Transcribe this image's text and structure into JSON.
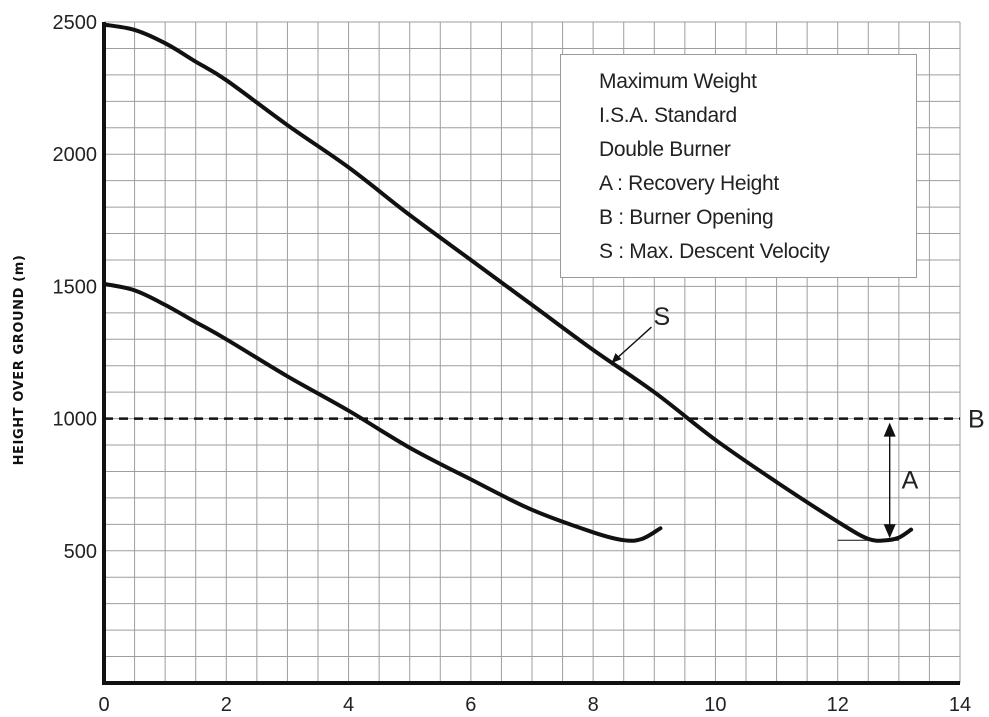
{
  "chart_data": {
    "type": "line",
    "title": "",
    "xlabel": "",
    "ylabel": "HEIGHT OVER GROUND  (m)",
    "xlim": [
      0,
      14
    ],
    "ylim": [
      0,
      2500
    ],
    "xticks": [
      "0",
      "2",
      "4",
      "6",
      "8",
      "10",
      "12",
      "14"
    ],
    "yticks": [
      "500",
      "1000",
      "1500",
      "2000",
      "2500"
    ],
    "grid": true,
    "series": [
      {
        "name": "",
        "x": [
          0,
          0.5,
          1,
          1.5,
          2,
          3,
          4,
          5,
          6,
          7,
          8,
          8.5,
          8.8,
          9.1
        ],
        "y": [
          1510,
          1485,
          1430,
          1365,
          1300,
          1160,
          1030,
          890,
          770,
          655,
          570,
          540,
          545,
          585
        ]
      },
      {
        "name": "",
        "x": [
          0,
          0.5,
          1,
          1.5,
          2,
          3,
          4,
          5,
          6,
          7,
          8,
          9,
          10,
          11,
          12,
          12.5,
          12.8,
          13,
          13.2
        ],
        "y": [
          2490,
          2470,
          2420,
          2350,
          2280,
          2110,
          1950,
          1770,
          1600,
          1430,
          1260,
          1100,
          920,
          760,
          610,
          545,
          540,
          550,
          580
        ]
      }
    ],
    "reference_lines": [
      {
        "orientation": "horizontal",
        "y": 1000,
        "style": "dashed",
        "label": "B"
      }
    ],
    "annotations": {
      "s_label": "S",
      "s_x": 8.3,
      "s_y": 1210,
      "a_label": "A",
      "a_x": 12.85,
      "a_from": 1000,
      "a_to": 540,
      "baseline_y": 540,
      "baseline_x_from": 12.0,
      "baseline_x_to": 13.0
    },
    "legend": {
      "placement": "top-right",
      "lines": [
        "Maximum Weight",
        "I.S.A. Standard",
        "Double Burner",
        "A : Recovery Height",
        "B : Burner Opening",
        "S : Max. Descent Velocity"
      ]
    }
  }
}
